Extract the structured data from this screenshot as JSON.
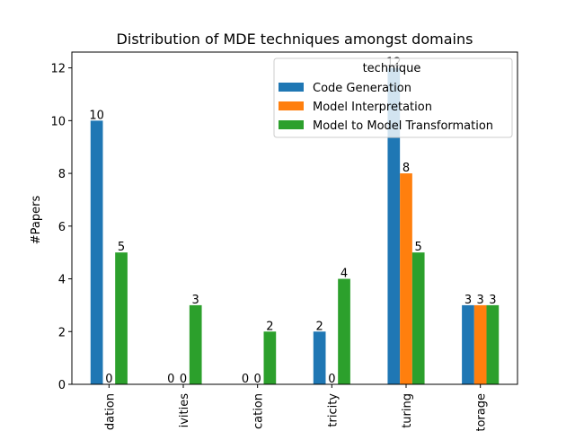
{
  "chart_data": {
    "type": "bar",
    "title": "Distribution of MDE techniques amongst domains",
    "xlabel": "",
    "ylabel": "#Papers",
    "ylim": [
      0,
      12.6
    ],
    "yticks": [
      0,
      2,
      4,
      6,
      8,
      10,
      12
    ],
    "categories": [
      "dation",
      "ivities",
      "cation",
      "tricity",
      "turing",
      "torage"
    ],
    "series": [
      {
        "name": "Code Generation",
        "color": "#1f77b4",
        "values": [
          10,
          0,
          0,
          2,
          12,
          3
        ]
      },
      {
        "name": "Model Interpretation",
        "color": "#ff7f0e",
        "values": [
          0,
          0,
          0,
          0,
          8,
          3
        ]
      },
      {
        "name": "Model to Model Transformation",
        "color": "#2ca02c",
        "values": [
          5,
          3,
          2,
          4,
          5,
          3
        ]
      }
    ],
    "legend": {
      "title": "technique",
      "placement": "top-right"
    },
    "grid": false
  }
}
